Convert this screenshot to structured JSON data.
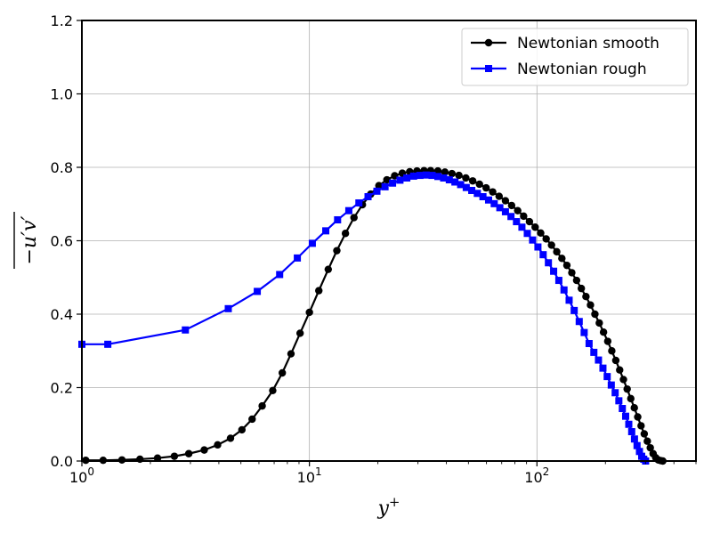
{
  "chart_data": {
    "type": "line",
    "xlabel": "y",
    "xlabel_sup": "+",
    "ylabel": "−u′v′",
    "x_scale": "log",
    "xlim": [
      1,
      500
    ],
    "ylim": [
      0,
      1.2
    ],
    "grid": true,
    "legend_position": "top-right",
    "x_ticks": [
      {
        "value": 1,
        "base": "10",
        "exp": "0"
      },
      {
        "value": 10,
        "base": "10",
        "exp": "1"
      },
      {
        "value": 100,
        "base": "10",
        "exp": "2"
      }
    ],
    "y_ticks": [
      {
        "value": 0,
        "label": "0.0"
      },
      {
        "value": 0.2,
        "label": "0.2"
      },
      {
        "value": 0.4,
        "label": "0.4"
      },
      {
        "value": 0.6,
        "label": "0.6"
      },
      {
        "value": 0.8,
        "label": "0.8"
      },
      {
        "value": 1.0,
        "label": "1.0"
      },
      {
        "value": 1.2,
        "label": "1.2"
      }
    ],
    "series": [
      {
        "name": "Newtonian smooth",
        "color": "#000000",
        "marker": "circle",
        "x": [
          1.04,
          1.24,
          1.5,
          1.8,
          2.15,
          2.55,
          2.95,
          3.45,
          3.95,
          4.5,
          5.05,
          5.6,
          6.2,
          6.9,
          7.6,
          8.3,
          9.1,
          10.0,
          11.0,
          12.1,
          13.2,
          14.4,
          15.7,
          17.1,
          18.6,
          20.2,
          21.9,
          23.7,
          25.6,
          27.6,
          29.7,
          31.9,
          34.1,
          36.7,
          39.4,
          42.3,
          45.4,
          48.7,
          52.2,
          55.9,
          59.8,
          63.9,
          68.2,
          72.7,
          77.4,
          82.3,
          87.4,
          92.7,
          98.2,
          103.9,
          109.8,
          115.9,
          122.2,
          128.7,
          135.4,
          142.3,
          149.4,
          156.7,
          164.2,
          171.9,
          179.8,
          187.9,
          196.2,
          204.7,
          213.3,
          222.1,
          231.0,
          240.0,
          249.2,
          258.5,
          267.9,
          277.3,
          286.8,
          296.2,
          305.6,
          314.9,
          324.0,
          332.9,
          341.5,
          349.7,
          357.4
        ],
        "y": [
          0.002,
          0.002,
          0.003,
          0.005,
          0.008,
          0.013,
          0.02,
          0.03,
          0.044,
          0.062,
          0.085,
          0.114,
          0.15,
          0.192,
          0.24,
          0.292,
          0.348,
          0.405,
          0.464,
          0.522,
          0.573,
          0.62,
          0.663,
          0.698,
          0.727,
          0.75,
          0.766,
          0.777,
          0.784,
          0.788,
          0.79,
          0.791,
          0.791,
          0.79,
          0.787,
          0.783,
          0.778,
          0.771,
          0.763,
          0.754,
          0.744,
          0.733,
          0.721,
          0.709,
          0.696,
          0.682,
          0.667,
          0.652,
          0.637,
          0.621,
          0.605,
          0.588,
          0.57,
          0.552,
          0.533,
          0.513,
          0.492,
          0.47,
          0.448,
          0.425,
          0.4,
          0.376,
          0.351,
          0.326,
          0.3,
          0.274,
          0.248,
          0.222,
          0.196,
          0.17,
          0.145,
          0.12,
          0.096,
          0.074,
          0.054,
          0.036,
          0.02,
          0.009,
          0.003,
          0.001,
          0.0
        ]
      },
      {
        "name": "Newtonian rough",
        "color": "#0000ff",
        "marker": "square",
        "x": [
          1.0,
          1.3,
          2.85,
          4.4,
          5.9,
          7.4,
          8.85,
          10.3,
          11.8,
          13.3,
          14.9,
          16.5,
          18.1,
          19.8,
          21.5,
          23.2,
          25.0,
          26.8,
          28.7,
          30.6,
          32.6,
          34.6,
          36.7,
          38.9,
          41.2,
          43.6,
          46.2,
          48.9,
          51.7,
          54.7,
          57.9,
          61.3,
          64.9,
          68.7,
          72.7,
          76.9,
          81.3,
          85.9,
          90.7,
          95.7,
          101.0,
          106.5,
          112.3,
          118.4,
          124.8,
          131.5,
          138.5,
          145.8,
          153.4,
          161.3,
          169.5,
          177.9,
          186.4,
          195.0,
          203.6,
          212.2,
          220.7,
          229.1,
          237.3,
          245.4,
          253.3,
          260.9,
          268.3,
          275.4,
          282.2,
          288.6,
          294.7,
          300.3
        ],
        "y": [
          0.318,
          0.318,
          0.357,
          0.415,
          0.462,
          0.508,
          0.553,
          0.593,
          0.627,
          0.657,
          0.682,
          0.703,
          0.72,
          0.735,
          0.747,
          0.757,
          0.765,
          0.771,
          0.776,
          0.778,
          0.779,
          0.778,
          0.775,
          0.771,
          0.766,
          0.76,
          0.753,
          0.745,
          0.737,
          0.729,
          0.72,
          0.711,
          0.701,
          0.69,
          0.679,
          0.666,
          0.652,
          0.637,
          0.62,
          0.602,
          0.583,
          0.562,
          0.54,
          0.517,
          0.492,
          0.466,
          0.438,
          0.41,
          0.38,
          0.35,
          0.32,
          0.296,
          0.275,
          0.253,
          0.23,
          0.207,
          0.186,
          0.164,
          0.143,
          0.122,
          0.1,
          0.08,
          0.06,
          0.042,
          0.026,
          0.013,
          0.005,
          0.0
        ]
      }
    ]
  }
}
